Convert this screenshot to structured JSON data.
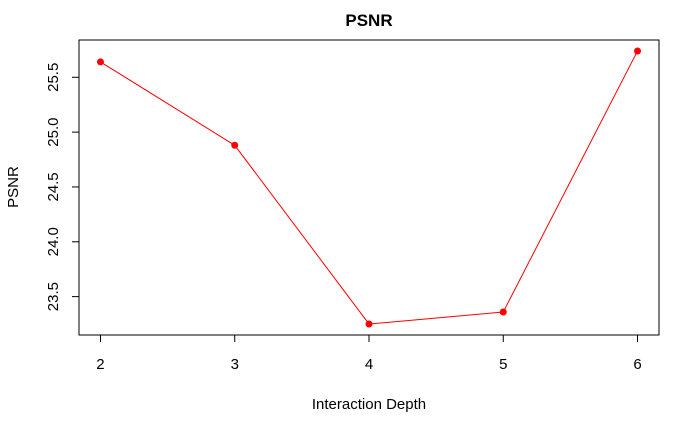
{
  "chart_data": {
    "type": "line",
    "title": "PSNR",
    "xlabel": "Interaction Depth",
    "ylabel": "PSNR",
    "x": [
      2,
      3,
      4,
      5,
      6
    ],
    "series": [
      {
        "values": [
          25.64,
          24.88,
          23.25,
          23.36,
          25.74
        ],
        "color": "#ff0000"
      }
    ],
    "x_ticks": [
      "2",
      "3",
      "4",
      "5",
      "6"
    ],
    "y_ticks": [
      "23.5",
      "24.0",
      "24.5",
      "25.0",
      "25.5"
    ],
    "xlim": [
      1.84,
      6.16
    ],
    "ylim": [
      23.15,
      25.84
    ],
    "grid": false,
    "legend": "none"
  }
}
